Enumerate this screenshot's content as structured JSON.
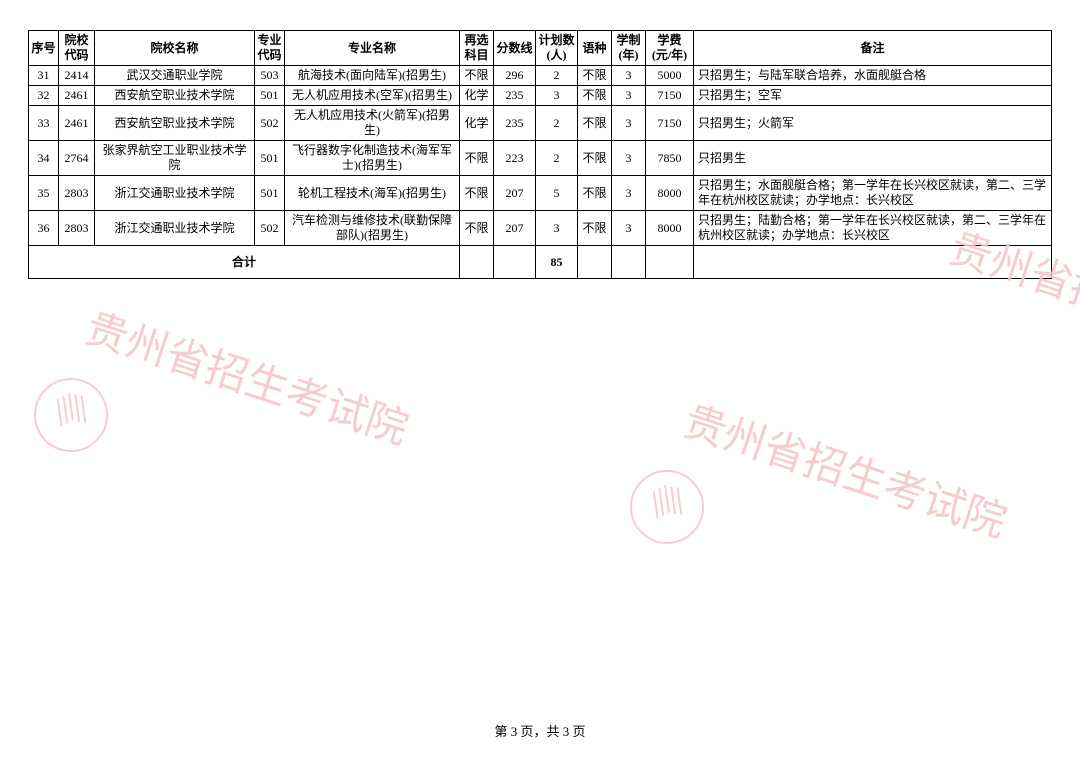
{
  "table": {
    "headers": [
      "序号",
      "院校代码",
      "院校名称",
      "专业代码",
      "专业名称",
      "再选科目",
      "分数线",
      "计划数(人)",
      "语种",
      "学制(年)",
      "学费(元/年)",
      "备注"
    ],
    "rows": [
      {
        "seq": "31",
        "scode": "2414",
        "sname": "武汉交通职业学院",
        "mcode": "503",
        "mname": "航海技术(面向陆军)(招男生)",
        "subj": "不限",
        "score": "296",
        "plan": "2",
        "lang": "不限",
        "years": "3",
        "fee": "5000",
        "note": "只招男生；与陆军联合培养，水面舰艇合格"
      },
      {
        "seq": "32",
        "scode": "2461",
        "sname": "西安航空职业技术学院",
        "mcode": "501",
        "mname": "无人机应用技术(空军)(招男生)",
        "subj": "化学",
        "score": "235",
        "plan": "3",
        "lang": "不限",
        "years": "3",
        "fee": "7150",
        "note": "只招男生；空军"
      },
      {
        "seq": "33",
        "scode": "2461",
        "sname": "西安航空职业技术学院",
        "mcode": "502",
        "mname": "无人机应用技术(火箭军)(招男生)",
        "subj": "化学",
        "score": "235",
        "plan": "2",
        "lang": "不限",
        "years": "3",
        "fee": "7150",
        "note": "只招男生；火箭军"
      },
      {
        "seq": "34",
        "scode": "2764",
        "sname": "张家界航空工业职业技术学院",
        "mcode": "501",
        "mname": "飞行器数字化制造技术(海军军士)(招男生)",
        "subj": "不限",
        "score": "223",
        "plan": "2",
        "lang": "不限",
        "years": "3",
        "fee": "7850",
        "note": "只招男生"
      },
      {
        "seq": "35",
        "scode": "2803",
        "sname": "浙江交通职业技术学院",
        "mcode": "501",
        "mname": "轮机工程技术(海军)(招男生)",
        "subj": "不限",
        "score": "207",
        "plan": "5",
        "lang": "不限",
        "years": "3",
        "fee": "8000",
        "note": "只招男生；水面舰艇合格；第一学年在长兴校区就读，第二、三学年在杭州校区就读；办学地点：长兴校区"
      },
      {
        "seq": "36",
        "scode": "2803",
        "sname": "浙江交通职业技术学院",
        "mcode": "502",
        "mname": "汽车检测与维修技术(联勤保障部队)(招男生)",
        "subj": "不限",
        "score": "207",
        "plan": "3",
        "lang": "不限",
        "years": "3",
        "fee": "8000",
        "note": "只招男生；陆勤合格；第一学年在长兴校区就读，第二、三学年在杭州校区就读；办学地点：长兴校区"
      }
    ],
    "total_label": "合计",
    "total_plan": "85"
  },
  "footer": {
    "text": "第 3 页，共 3 页"
  },
  "watermark": {
    "text": "贵州省招生考试院"
  },
  "style": {
    "border_color": "#000000",
    "bg_color": "#ffffff",
    "font_size_cell": 12,
    "font_size_footer": 13,
    "watermark_color": "#f3c9c9",
    "watermark_fontsize": 42
  }
}
